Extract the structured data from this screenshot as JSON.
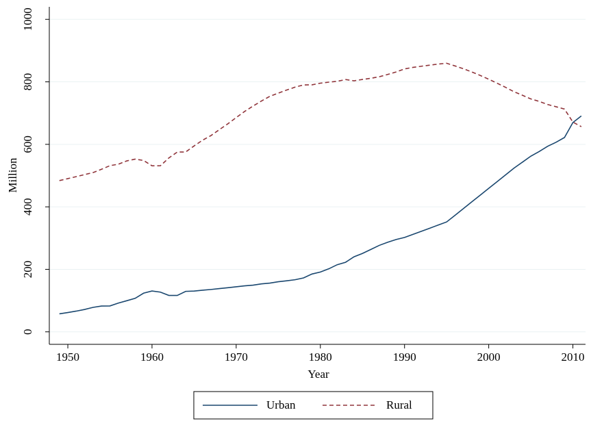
{
  "chart_data": {
    "type": "line",
    "xlabel": "Year",
    "ylabel": "Million",
    "x": [
      1949,
      1950,
      1951,
      1952,
      1953,
      1954,
      1955,
      1956,
      1957,
      1958,
      1959,
      1960,
      1961,
      1962,
      1963,
      1964,
      1965,
      1966,
      1967,
      1968,
      1969,
      1970,
      1971,
      1972,
      1973,
      1974,
      1975,
      1976,
      1977,
      1978,
      1979,
      1980,
      1981,
      1982,
      1983,
      1984,
      1985,
      1986,
      1987,
      1988,
      1989,
      1990,
      1991,
      1992,
      1993,
      1994,
      1995,
      1996,
      1997,
      1998,
      1999,
      2000,
      2001,
      2002,
      2003,
      2004,
      2005,
      2006,
      2007,
      2008,
      2009,
      2010,
      2011
    ],
    "series": [
      {
        "name": "Urban",
        "color": "#1a476f",
        "dash": false,
        "values": [
          57.7,
          61.7,
          66.3,
          71.6,
          78.3,
          82.5,
          82.9,
          91.9,
          99.5,
          107.2,
          123.7,
          130.7,
          127.1,
          116.6,
          116.5,
          129.5,
          130.5,
          133.1,
          135.5,
          138.4,
          141.2,
          144.2,
          147.1,
          149.4,
          153.5,
          156.0,
          160.3,
          163.4,
          166.7,
          172.5,
          185.0,
          191.4,
          201.7,
          214.8,
          222.7,
          240.2,
          250.9,
          263.7,
          276.7,
          286.6,
          295.4,
          302.0,
          312.0,
          321.8,
          331.7,
          341.7,
          351.7,
          373.0,
          394.5,
          416.1,
          437.5,
          459.1,
          480.6,
          502.1,
          523.8,
          542.8,
          562.1,
          577.1,
          593.8,
          606.7,
          621.9,
          669.8,
          690.8
        ]
      },
      {
        "name": "Rural",
        "color": "#90353b",
        "dash": true,
        "values": [
          484.0,
          490.3,
          496.7,
          503.2,
          509.7,
          520.2,
          531.8,
          536.4,
          547.0,
          552.7,
          548.4,
          531.3,
          531.5,
          556.4,
          575.3,
          575.5,
          594.9,
          613.1,
          628.0,
          647.0,
          665.5,
          685.7,
          705.2,
          722.4,
          738.7,
          753.7,
          763.9,
          773.8,
          783.1,
          790.1,
          790.5,
          795.7,
          799.0,
          801.7,
          807.3,
          803.4,
          807.6,
          811.4,
          816.3,
          823.7,
          831.6,
          841.4,
          846.2,
          850.0,
          853.4,
          856.8,
          859.5,
          850.9,
          841.8,
          831.5,
          820.4,
          808.4,
          795.6,
          782.4,
          768.5,
          757.1,
          745.4,
          737.4,
          727.5,
          720.3,
          712.9,
          671.1,
          656.6
        ]
      }
    ],
    "xlim": [
      1947.8,
      2011.5
    ],
    "xticks": [
      1950,
      1960,
      1970,
      1980,
      1990,
      2000,
      2010
    ],
    "ylim": [
      -40,
      1040
    ],
    "yticks": [
      0,
      200,
      400,
      600,
      800,
      1000
    ],
    "grid": true,
    "legend": "bottom"
  }
}
